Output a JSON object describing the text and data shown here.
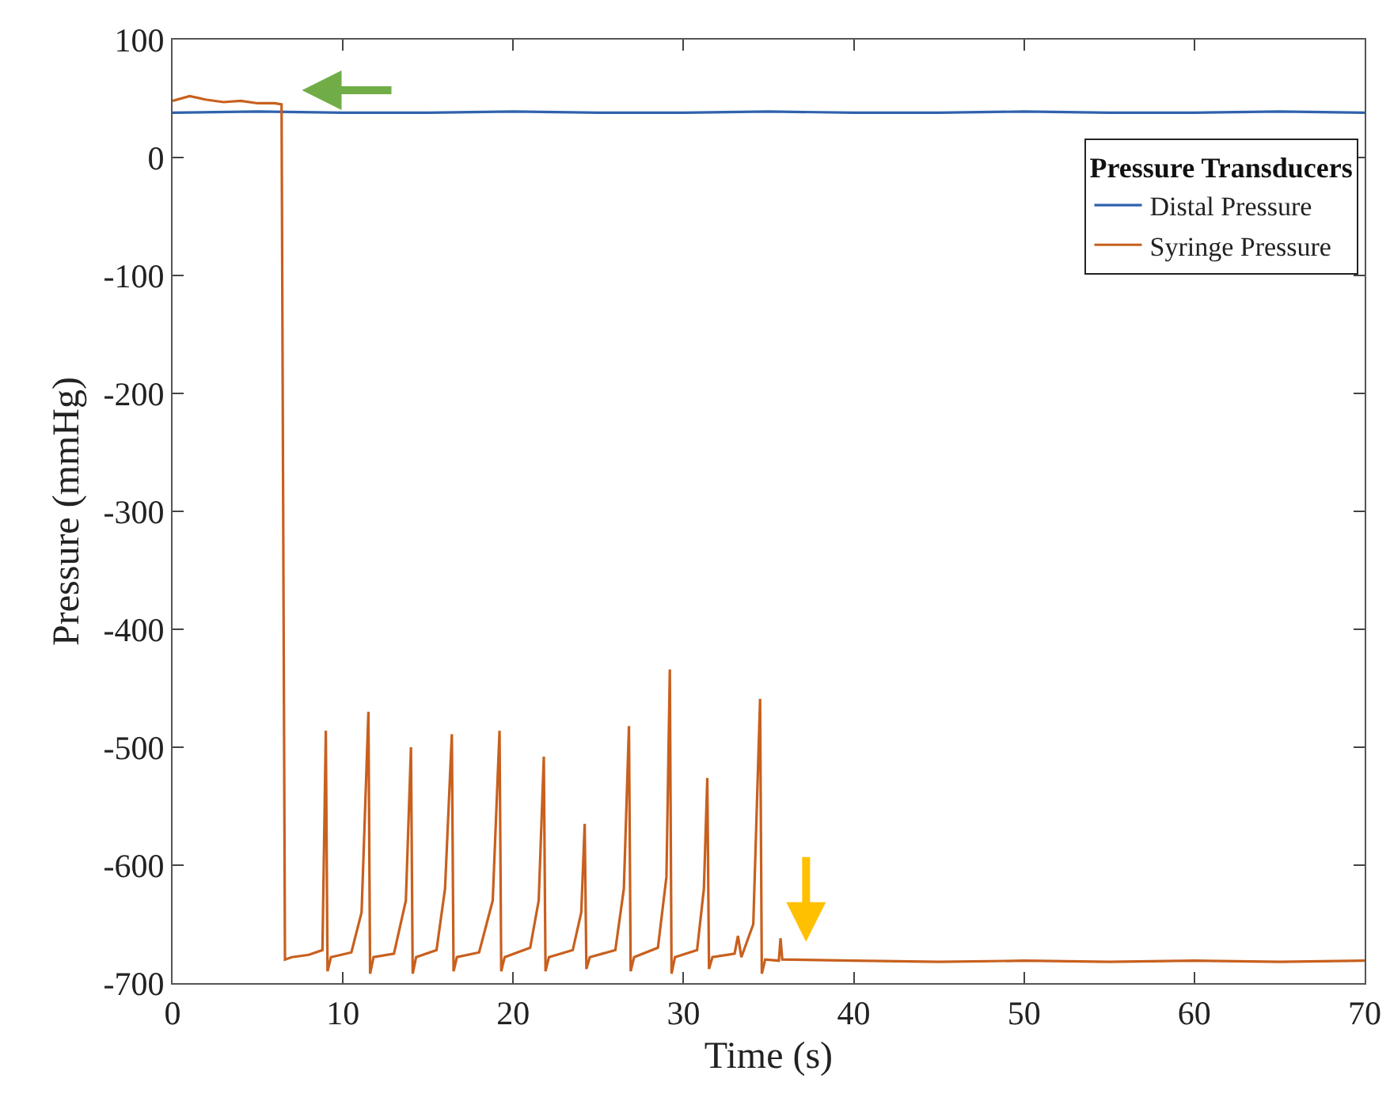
{
  "chart_data": {
    "type": "line",
    "xlabel": "Time (s)",
    "ylabel": "Pressure (mmHg)",
    "legend_title": "Pressure Transducers",
    "xlim": [
      0,
      70
    ],
    "ylim": [
      -700,
      100
    ],
    "xticks": [
      0,
      10,
      20,
      30,
      40,
      50,
      60,
      70
    ],
    "yticks": [
      -700,
      -600,
      -500,
      -400,
      -300,
      -200,
      -100,
      0,
      100
    ],
    "grid": false,
    "legend": "top right",
    "marker": "none",
    "line_style": "solid",
    "series": [
      {
        "name": "Distal Pressure",
        "color": "#2f62ad",
        "x": [
          0,
          5,
          10,
          15,
          20,
          25,
          30,
          35,
          40,
          45,
          50,
          55,
          60,
          65,
          70
        ],
        "values": [
          38,
          39,
          38,
          38,
          39,
          38,
          38,
          39,
          38,
          38,
          39,
          38,
          38,
          39,
          38
        ]
      },
      {
        "name": "Syringe Pressure",
        "color": "#c8601e",
        "x": [
          0,
          1,
          2,
          3,
          4,
          5,
          6,
          6.4,
          6.6,
          7,
          8,
          8.8,
          9.0,
          9.1,
          9.3,
          10.5,
          11.1,
          11.5,
          11.6,
          11.8,
          13,
          13.7,
          14.0,
          14.1,
          14.3,
          15.5,
          16.0,
          16.4,
          16.5,
          16.7,
          18,
          18.8,
          19.2,
          19.3,
          19.5,
          21,
          21.5,
          21.8,
          21.9,
          22.1,
          23.5,
          24.0,
          24.2,
          24.3,
          24.5,
          26,
          26.5,
          26.8,
          26.9,
          27.1,
          28.5,
          29.0,
          29.2,
          29.3,
          29.5,
          30.8,
          31.2,
          31.4,
          31.5,
          31.7,
          33,
          33.2,
          33.4,
          34.1,
          34.5,
          34.6,
          34.8,
          35.6,
          35.7,
          35.8,
          40,
          45,
          50,
          55,
          60,
          65,
          70
        ],
        "values": [
          48,
          52,
          49,
          47,
          48,
          46,
          46,
          45,
          -680,
          -678,
          -676,
          -672,
          -486,
          -690,
          -678,
          -674,
          -640,
          -470,
          -692,
          -678,
          -675,
          -630,
          -500,
          -692,
          -678,
          -672,
          -620,
          -489,
          -690,
          -678,
          -674,
          -630,
          -486,
          -690,
          -678,
          -670,
          -630,
          -508,
          -690,
          -678,
          -672,
          -640,
          -565,
          -688,
          -678,
          -672,
          -620,
          -482,
          -690,
          -678,
          -670,
          -610,
          -434,
          -692,
          -678,
          -672,
          -620,
          -526,
          -688,
          -678,
          -675,
          -660,
          -678,
          -650,
          -459,
          -692,
          -680,
          -681,
          -662,
          -680,
          -681,
          -682,
          -681,
          -682,
          -681,
          -682,
          -681
        ]
      }
    ]
  }
}
